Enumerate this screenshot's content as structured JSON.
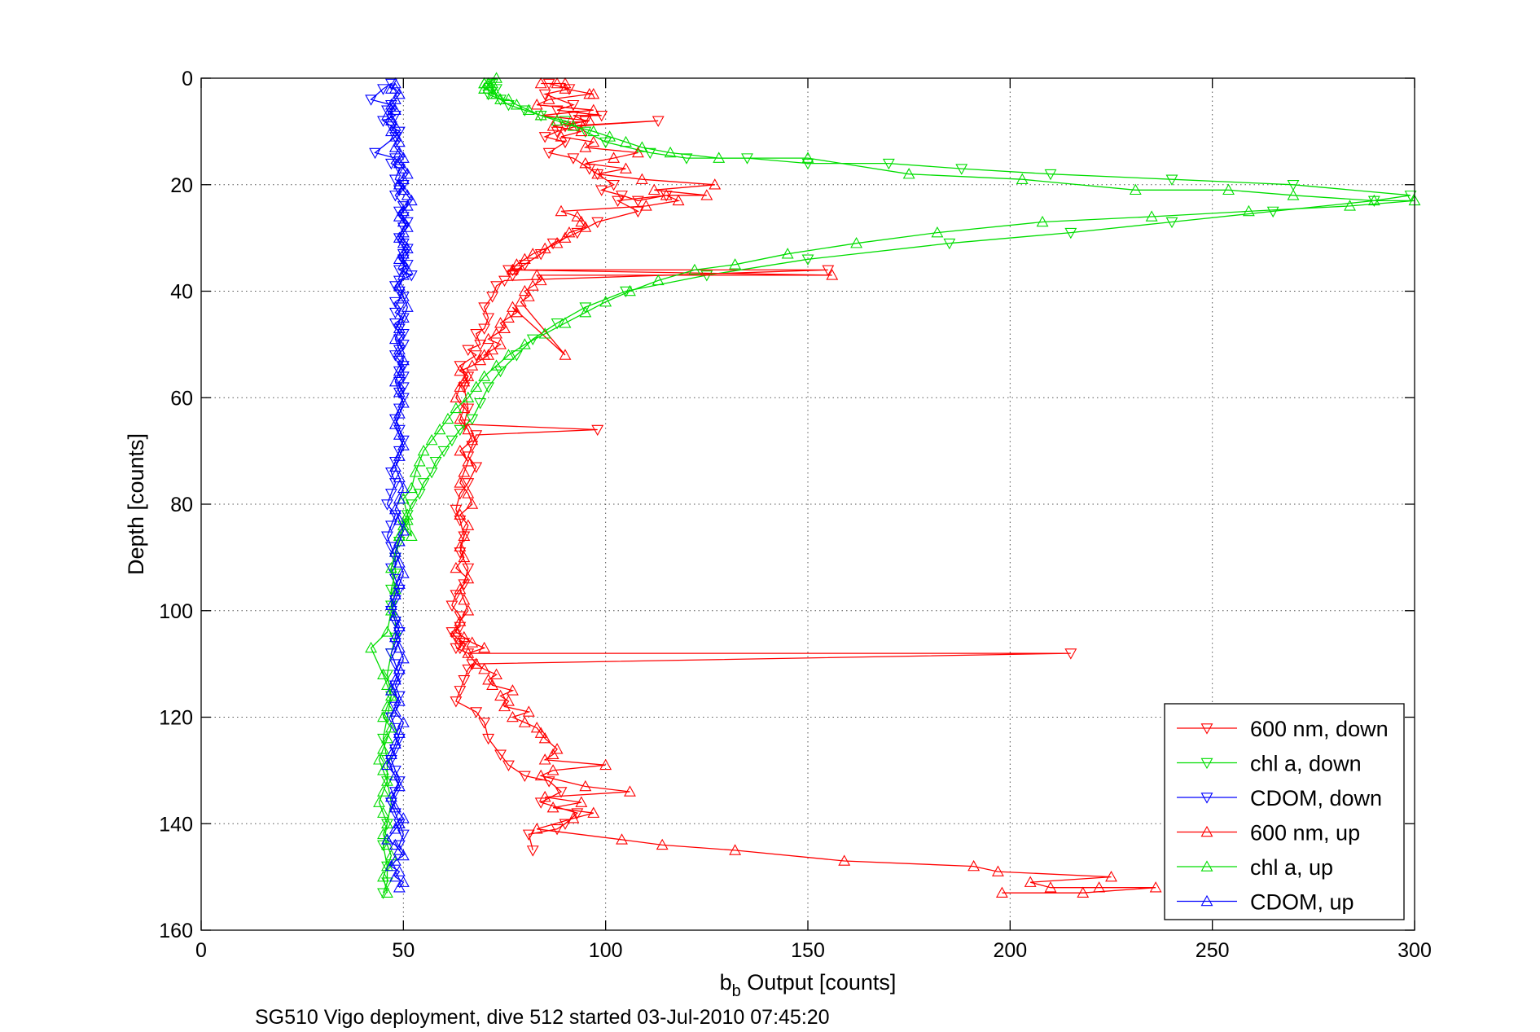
{
  "chart_data": {
    "type": "line",
    "title": "",
    "xlabel": "b_b Output [counts]",
    "xlabel_parts": {
      "main": "b",
      "sub": "b",
      "rest": " Output [counts]"
    },
    "ylabel": "Depth [counts]",
    "caption": "SG510 Vigo deployment, dive 512 started 03-Jul-2010 07:45:20",
    "xlim": [
      0,
      300
    ],
    "ylim": [
      0,
      160
    ],
    "y_reversed": true,
    "xticks": [
      0,
      50,
      100,
      150,
      200,
      250,
      300
    ],
    "xtick_labels": [
      "0",
      "50",
      "100",
      "150",
      "200",
      "250",
      "300"
    ],
    "yticks": [
      0,
      20,
      40,
      60,
      80,
      100,
      120,
      140,
      160
    ],
    "ytick_labels": [
      "0",
      "20",
      "40",
      "60",
      "80",
      "100",
      "120",
      "140",
      "160"
    ],
    "grid": true,
    "legend_position": "bottom-right",
    "series": [
      {
        "name": "600 nm, down",
        "color": "#ff0000",
        "marker": "triangle-down",
        "x": [
          86,
          91,
          85,
          92,
          88,
          99,
          92,
          95,
          90,
          113,
          93,
          88,
          85,
          90,
          86,
          92,
          96,
          98,
          102,
          99,
          104,
          108,
          115,
          103,
          108,
          98,
          93,
          87,
          84,
          80,
          78,
          77,
          76,
          155,
          75,
          73,
          72,
          70,
          71,
          70,
          68,
          69,
          66,
          68,
          64,
          66,
          65,
          66,
          65,
          98,
          68,
          67,
          66,
          68,
          66,
          64,
          63,
          64,
          65,
          64,
          66,
          65,
          63,
          62,
          64,
          64,
          62,
          63,
          65,
          64,
          64,
          63,
          66,
          215,
          67,
          66,
          65,
          64,
          63,
          68,
          70,
          71,
          74,
          76,
          80,
          86,
          89,
          84,
          93,
          90,
          88,
          81,
          82
        ],
        "y": [
          1,
          2,
          3,
          5,
          6,
          7,
          7,
          8,
          9,
          8,
          9,
          10,
          11,
          12,
          14,
          15,
          17,
          18,
          20,
          21,
          22,
          23,
          22,
          23,
          25,
          27,
          29,
          31,
          33,
          35,
          36,
          37,
          36,
          36,
          38,
          39,
          41,
          43,
          45,
          47,
          48,
          50,
          51,
          52,
          54,
          56,
          58,
          62,
          65,
          66,
          67,
          69,
          71,
          73,
          76,
          78,
          81,
          83,
          86,
          89,
          92,
          95,
          97,
          99,
          101,
          103,
          104,
          105,
          106,
          106,
          107,
          107,
          108,
          108,
          110,
          111,
          113,
          115,
          117,
          119,
          121,
          124,
          127,
          129,
          131,
          132,
          134,
          136,
          138,
          140,
          141,
          142,
          145
        ]
      },
      {
        "name": "chl a, down",
        "color": "#00dd00",
        "marker": "triangle-down",
        "x": [
          72,
          73,
          71,
          74,
          76,
          80,
          84,
          90,
          95,
          100,
          111,
          120,
          135,
          150,
          170,
          188,
          210,
          240,
          270,
          299,
          290,
          265,
          240,
          215,
          185,
          150,
          125,
          105,
          95,
          88,
          82,
          78,
          74,
          71,
          69,
          67,
          64,
          62,
          60,
          58,
          57,
          55,
          54,
          52,
          51,
          50,
          49,
          48,
          48,
          47,
          47,
          48,
          48,
          47,
          46,
          47,
          46,
          45,
          46,
          46,
          47,
          46,
          45,
          46,
          46,
          45
        ],
        "y": [
          1,
          2,
          3,
          4,
          5,
          6,
          7,
          8,
          10,
          12,
          14,
          15,
          15,
          16,
          16,
          17,
          18,
          19,
          20,
          22,
          23,
          25,
          27,
          29,
          31,
          34,
          37,
          40,
          43,
          46,
          49,
          52,
          55,
          58,
          61,
          64,
          66,
          68,
          70,
          72,
          74,
          76,
          78,
          80,
          82,
          84,
          87,
          90,
          93,
          96,
          99,
          102,
          105,
          108,
          112,
          116,
          120,
          124,
          128,
          132,
          136,
          140,
          144,
          148,
          151,
          153
        ]
      },
      {
        "name": "CDOM, down",
        "color": "#0000ff",
        "marker": "triangle-down",
        "x": [
          47,
          45,
          42,
          47,
          46,
          48,
          45,
          47,
          49,
          48,
          43,
          48,
          47,
          49,
          48,
          50,
          49,
          48,
          50,
          49,
          50,
          51,
          50,
          49,
          50,
          51,
          50,
          50,
          51,
          49,
          52,
          49,
          48,
          49,
          50,
          48,
          49,
          48,
          50,
          48,
          49,
          50,
          49,
          50,
          49,
          48,
          49,
          50,
          49,
          50,
          49,
          50,
          49,
          50,
          49,
          48,
          49,
          50,
          49,
          48,
          47,
          48,
          47,
          46,
          48,
          47,
          46,
          47,
          48,
          47,
          48,
          49,
          48,
          47,
          48,
          49,
          48,
          47,
          48,
          49,
          48,
          49,
          48,
          47,
          48,
          49,
          48,
          47,
          48,
          49,
          48,
          47,
          48,
          49,
          50,
          49
        ],
        "y": [
          1,
          2,
          4,
          5,
          6,
          7,
          8,
          9,
          10,
          11,
          14,
          15,
          16,
          17,
          19,
          20,
          21,
          22,
          24,
          25,
          26,
          27,
          28,
          30,
          31,
          32,
          33,
          34,
          35,
          36,
          37,
          38,
          39,
          40,
          41,
          42,
          43,
          44,
          45,
          46,
          47,
          48,
          49,
          50,
          51,
          52,
          53,
          54,
          55,
          56,
          57,
          58,
          59,
          60,
          62,
          64,
          66,
          68,
          70,
          72,
          74,
          76,
          78,
          80,
          82,
          84,
          86,
          88,
          90,
          92,
          94,
          96,
          98,
          100,
          102,
          104,
          106,
          108,
          110,
          112,
          114,
          116,
          118,
          120,
          122,
          124,
          126,
          128,
          130,
          132,
          134,
          136,
          138,
          140,
          142,
          144
        ]
      },
      {
        "name": "600 nm, up",
        "color": "#ff0000",
        "marker": "triangle-up",
        "x": [
          198,
          218,
          236,
          222,
          210,
          205,
          225,
          197,
          191,
          159,
          132,
          114,
          104,
          83,
          92,
          97,
          87,
          94,
          85,
          106,
          95,
          84,
          87,
          100,
          85,
          87,
          88,
          85,
          84,
          83,
          80,
          77,
          81,
          75,
          76,
          74,
          77,
          72,
          71,
          73,
          70,
          68,
          66,
          70,
          67,
          65,
          63,
          64,
          66,
          65,
          64,
          66,
          63,
          65,
          64,
          65,
          66,
          64,
          67,
          66,
          64,
          65,
          66,
          64,
          67,
          66,
          64,
          65,
          63,
          64,
          65,
          66,
          64,
          67,
          69,
          71,
          70,
          72,
          74,
          71,
          73,
          75,
          74,
          76,
          78,
          77,
          90,
          79,
          81,
          80,
          82,
          84,
          83,
          156,
          77,
          78,
          80,
          82,
          85,
          88,
          90,
          91,
          95,
          94,
          93,
          89,
          110,
          118,
          115,
          125,
          112,
          127,
          109,
          98,
          105,
          95,
          102,
          108,
          95,
          97,
          89,
          94,
          87,
          96,
          84,
          97,
          83,
          86,
          96,
          97,
          90,
          90,
          88,
          84
        ],
        "y": [
          153,
          153,
          152,
          152,
          152,
          151,
          150,
          149,
          148,
          147,
          145,
          144,
          143,
          141,
          139,
          138,
          137,
          136,
          135,
          134,
          133,
          131,
          130,
          129,
          128,
          127,
          126,
          124,
          123,
          122,
          121,
          120,
          119,
          118,
          117,
          116,
          115,
          114,
          113,
          112,
          111,
          110,
          108,
          107,
          106,
          105,
          104,
          102,
          100,
          98,
          96,
          94,
          92,
          90,
          88,
          86,
          84,
          82,
          80,
          78,
          76,
          74,
          72,
          70,
          68,
          66,
          64,
          62,
          60,
          58,
          57,
          56,
          55,
          54,
          53,
          52,
          52,
          51,
          50,
          49,
          48,
          47,
          46,
          45,
          44,
          43,
          52,
          42,
          41,
          40,
          39,
          38,
          37,
          37,
          36,
          35,
          34,
          33,
          32,
          31,
          30,
          29,
          28,
          27,
          26,
          25,
          24,
          23,
          22,
          22,
          21,
          20,
          19,
          18,
          17,
          16,
          15,
          14,
          13,
          12,
          11,
          10,
          9,
          8,
          7,
          6,
          5,
          4,
          3,
          3,
          2,
          1,
          1,
          1
        ]
      },
      {
        "name": "chl a, up",
        "color": "#00dd00",
        "marker": "triangle-up",
        "x": [
          46,
          45,
          46,
          47,
          46,
          45,
          46,
          45,
          44,
          45,
          46,
          45,
          44,
          45,
          46,
          47,
          45,
          46,
          47,
          46,
          45,
          42,
          46,
          47,
          48,
          47,
          48,
          49,
          51,
          50,
          52,
          51,
          50,
          52,
          53,
          54,
          55,
          57,
          59,
          61,
          63,
          66,
          68,
          70,
          73,
          76,
          80,
          85,
          90,
          95,
          100,
          106,
          113,
          122,
          132,
          145,
          162,
          182,
          208,
          235,
          259,
          284,
          300,
          290,
          270,
          254,
          231,
          203,
          175,
          150,
          128,
          116,
          109,
          105,
          101,
          97,
          92,
          88,
          84,
          81,
          78,
          76,
          74,
          73,
          72,
          71,
          70,
          70,
          70,
          71,
          72,
          73,
          70
        ],
        "y": [
          153,
          150,
          148,
          146,
          144,
          142,
          140,
          138,
          136,
          134,
          132,
          130,
          128,
          126,
          124,
          122,
          120,
          118,
          116,
          114,
          112,
          107,
          104,
          100,
          96,
          92,
          89,
          86,
          83,
          84,
          86,
          82,
          79,
          77,
          74,
          72,
          70,
          68,
          66,
          64,
          62,
          60,
          58,
          56,
          54,
          52,
          50,
          48,
          46,
          44,
          42,
          40,
          38,
          36,
          35,
          33,
          31,
          29,
          27,
          26,
          25,
          24,
          23,
          23,
          22,
          21,
          21,
          19,
          18,
          15,
          15,
          14,
          13,
          12,
          11,
          10,
          9,
          8,
          7,
          6,
          5,
          4,
          4,
          3,
          3,
          2,
          2,
          2,
          1,
          1,
          1,
          0,
          1
        ]
      },
      {
        "name": "CDOM, up",
        "color": "#0000ff",
        "marker": "triangle-up",
        "x": [
          49,
          50,
          48,
          49,
          47,
          48,
          50,
          49,
          48,
          46,
          48,
          49,
          50,
          48,
          47,
          49,
          48,
          46,
          47,
          48,
          49,
          50,
          48,
          49,
          47,
          48,
          49,
          50,
          49,
          48,
          49,
          48,
          47,
          48,
          49,
          50,
          49,
          48,
          49,
          50,
          49,
          48,
          49,
          50,
          49,
          48,
          49,
          50,
          49,
          48,
          49,
          50,
          49,
          48,
          49,
          50,
          49,
          48,
          49,
          50,
          51,
          50,
          49,
          50,
          51,
          50,
          49,
          50,
          51,
          50,
          49,
          50,
          51,
          50,
          49,
          50,
          51,
          52,
          51,
          50,
          49,
          50,
          51,
          50,
          49,
          50,
          49,
          48,
          49,
          48,
          47,
          48,
          47,
          46,
          48,
          47,
          48,
          49,
          48,
          47,
          48
        ],
        "y": [
          152,
          151,
          150,
          149,
          148,
          147,
          146,
          145,
          144,
          143,
          141,
          140,
          139,
          137,
          135,
          133,
          131,
          129,
          127,
          125,
          123,
          121,
          119,
          117,
          115,
          113,
          111,
          109,
          107,
          105,
          103,
          101,
          99,
          97,
          95,
          93,
          91,
          89,
          87,
          85,
          83,
          81,
          79,
          77,
          75,
          73,
          71,
          69,
          67,
          65,
          63,
          61,
          59,
          57,
          55,
          53,
          51,
          49,
          47,
          45,
          43,
          41,
          39,
          37,
          36,
          35,
          34,
          33,
          32,
          31,
          30,
          29,
          28,
          27,
          26,
          25,
          24,
          23,
          22,
          21,
          20,
          19,
          18,
          17,
          16,
          15,
          14,
          13,
          12,
          11,
          10,
          9,
          8,
          7,
          6,
          5,
          4,
          3,
          2,
          2,
          1
        ]
      }
    ]
  }
}
